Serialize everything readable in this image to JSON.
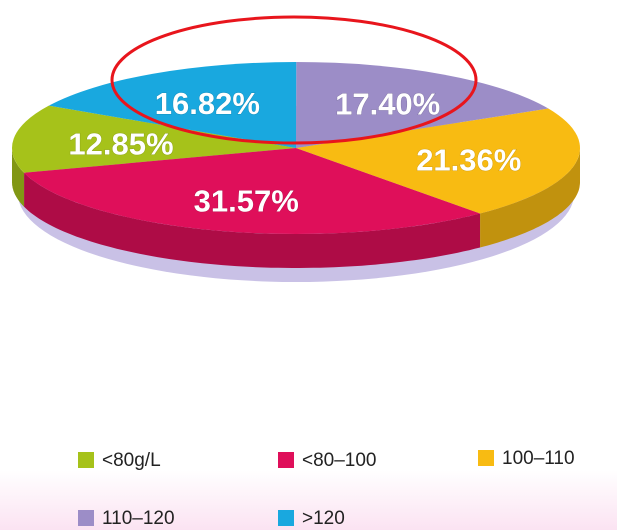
{
  "chart_data": {
    "type": "pie3d",
    "categories": [
      "<80g/L",
      "<80–100",
      "100–110",
      "110–120",
      ">120"
    ],
    "values": [
      12.85,
      31.57,
      21.36,
      17.4,
      16.82
    ],
    "value_labels": [
      "12.85%",
      "31.57%",
      "21.36%",
      "17.40%",
      "16.82%"
    ],
    "colors": [
      "#a6c21a",
      "#df0f5a",
      "#f8bb12",
      "#9c8dc7",
      "#19a8df"
    ],
    "legend": "bottom"
  }
}
